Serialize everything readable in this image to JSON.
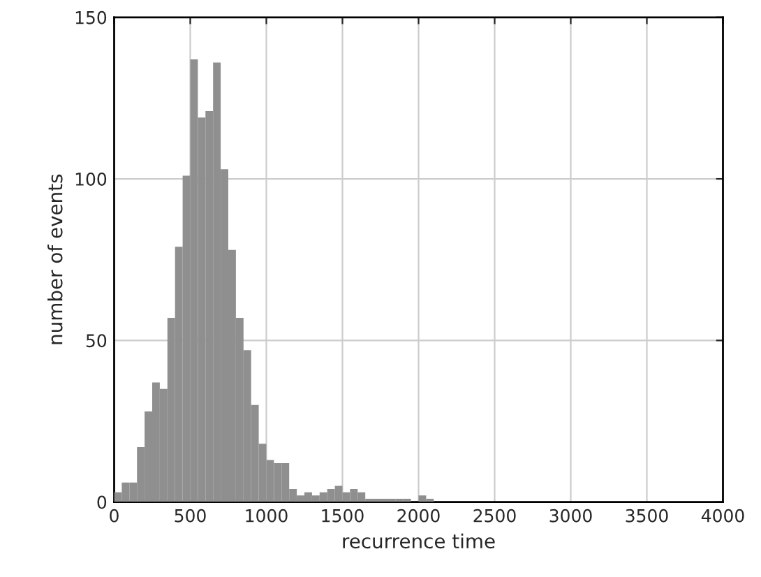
{
  "chart_data": {
    "type": "histogram",
    "xlabel": "recurrence time",
    "ylabel": "number of events",
    "bins": [
      0,
      50,
      100,
      150,
      200,
      250,
      300,
      350,
      400,
      450,
      500,
      550,
      600,
      650,
      700,
      750,
      800,
      850,
      900,
      950,
      1000,
      1050,
      1100,
      1150,
      1200,
      1250,
      1300,
      1350,
      1400,
      1450,
      1500,
      1550,
      1600,
      1650,
      1700,
      1750,
      1800,
      1850,
      1900,
      1950,
      2000,
      2050,
      2100
    ],
    "values": [
      3,
      6,
      6,
      17,
      28,
      37,
      35,
      57,
      79,
      101,
      137,
      119,
      121,
      136,
      103,
      78,
      57,
      47,
      30,
      18,
      13,
      12,
      12,
      4,
      2,
      3,
      2,
      3,
      4,
      5,
      3,
      4,
      3,
      1,
      1,
      1,
      1,
      1,
      1,
      0,
      2,
      1
    ],
    "color": "#8f8f8f",
    "xlim": [
      0,
      4000
    ],
    "xticks": [
      0,
      500,
      1000,
      1500,
      2000,
      2500,
      3000,
      3500,
      4000
    ],
    "ylim": [
      0,
      150
    ],
    "yticks": [
      0,
      50,
      100,
      150
    ],
    "grid": true
  }
}
